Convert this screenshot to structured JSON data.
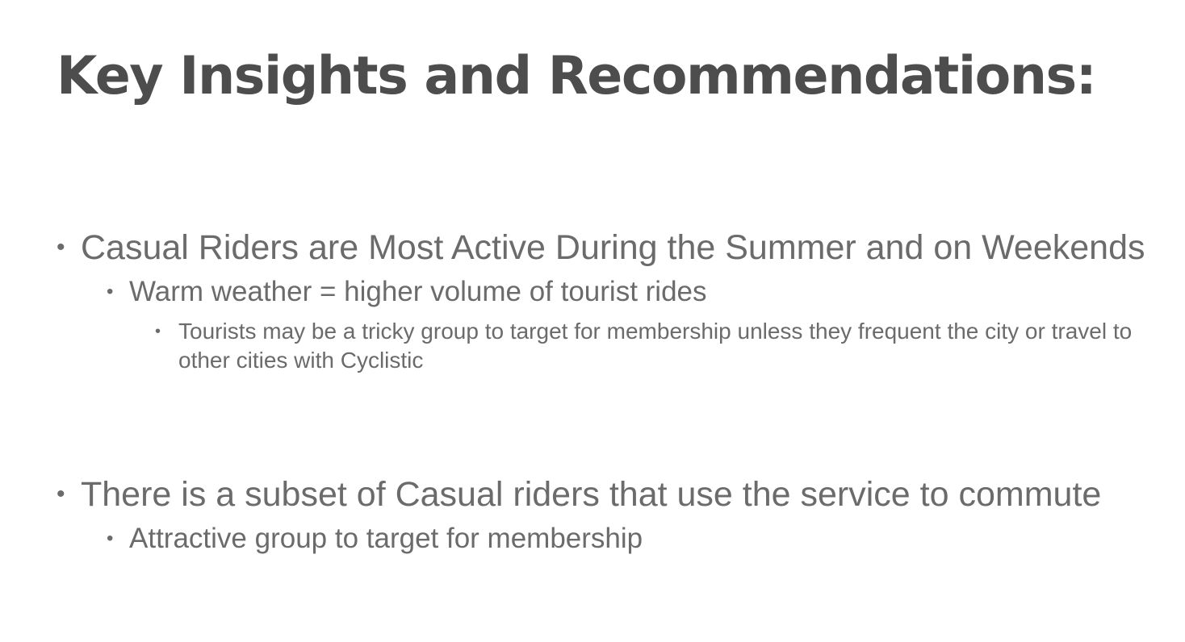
{
  "slide": {
    "title": "Key Insights and Recommendations:",
    "bullets": [
      {
        "text": "Casual Riders are Most Active During the Summer and on Weekends",
        "sub": [
          {
            "text": "Warm weather = higher volume of tourist rides",
            "sub": [
              {
                "text": "Tourists may be a tricky group to target for membership unless they frequent the city or travel to other cities with Cyclistic"
              }
            ]
          }
        ]
      },
      {
        "text": "There is a subset of Casual riders that use the service to commute",
        "sub": [
          {
            "text": "Attractive group to target for membership"
          }
        ]
      }
    ],
    "bullet_glyph": "•",
    "colors": {
      "title": "#4d4d4d",
      "body": "#6b6b6b",
      "background": "#ffffff"
    }
  }
}
